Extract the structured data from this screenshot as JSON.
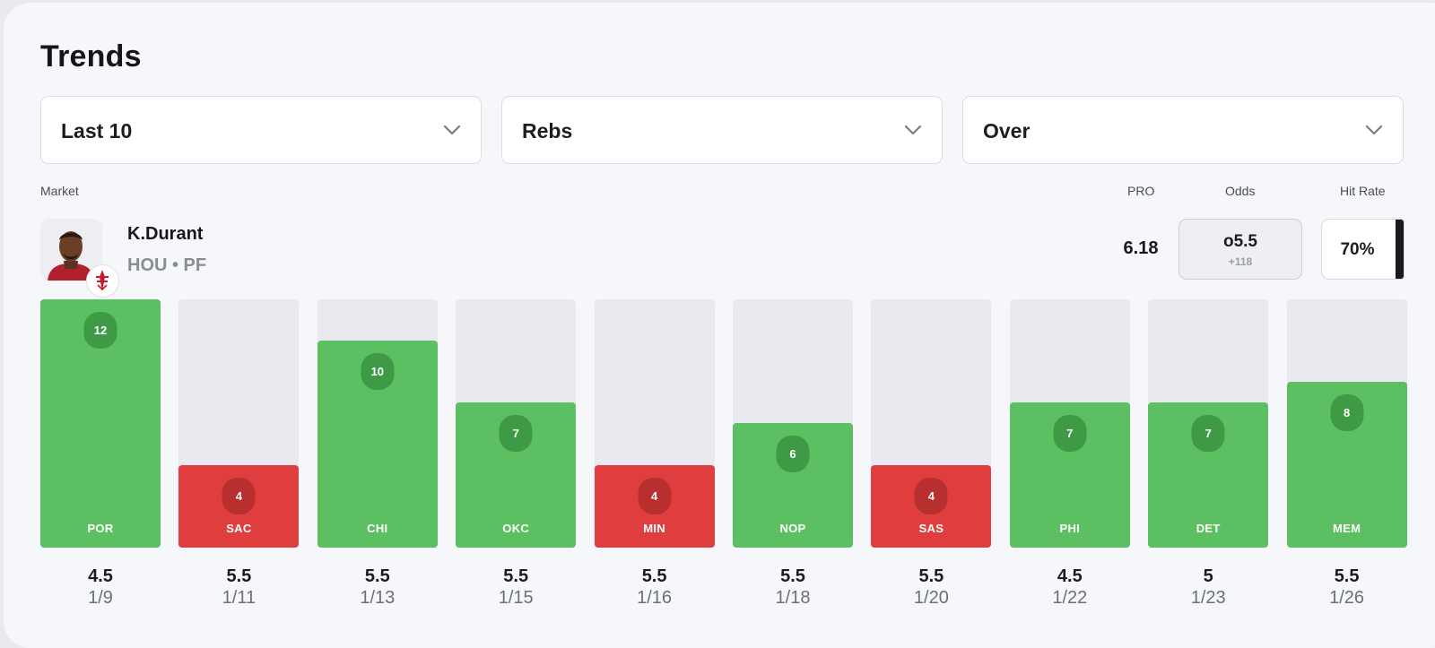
{
  "title": "Trends",
  "filters": [
    {
      "label": "Last 10"
    },
    {
      "label": "Rebs"
    },
    {
      "label": "Over"
    }
  ],
  "columns": {
    "market": "Market",
    "pro": "PRO",
    "odds": "Odds",
    "hit_rate": "Hit Rate"
  },
  "player": {
    "name": "K.Durant",
    "team_position": "HOU • PF",
    "pro_value": "6.18",
    "odds_line": "o5.5",
    "odds_price": "+118",
    "hit_rate": "70%",
    "hit_rate_fraction": 0.7
  },
  "colors": {
    "hit": "#5cc062",
    "miss": "#e03e3e",
    "hit_badge": "#3f9a46",
    "miss_badge": "#b72f2f",
    "empty": "#e9eaf0"
  },
  "chart_data": {
    "type": "bar",
    "ymax": 12,
    "categories": [
      "POR",
      "SAC",
      "CHI",
      "OKC",
      "MIN",
      "NOP",
      "SAS",
      "PHI",
      "DET",
      "MEM"
    ],
    "values": [
      12,
      4,
      10,
      7,
      4,
      6,
      4,
      7,
      7,
      8
    ],
    "lines": [
      "4.5",
      "5.5",
      "5.5",
      "5.5",
      "5.5",
      "5.5",
      "5.5",
      "4.5",
      "5",
      "5.5"
    ],
    "dates": [
      "1/9",
      "1/11",
      "1/13",
      "1/15",
      "1/16",
      "1/18",
      "1/20",
      "1/22",
      "1/23",
      "1/26"
    ],
    "result": [
      "hit",
      "miss",
      "hit",
      "hit",
      "miss",
      "hit",
      "miss",
      "hit",
      "hit",
      "hit"
    ]
  }
}
